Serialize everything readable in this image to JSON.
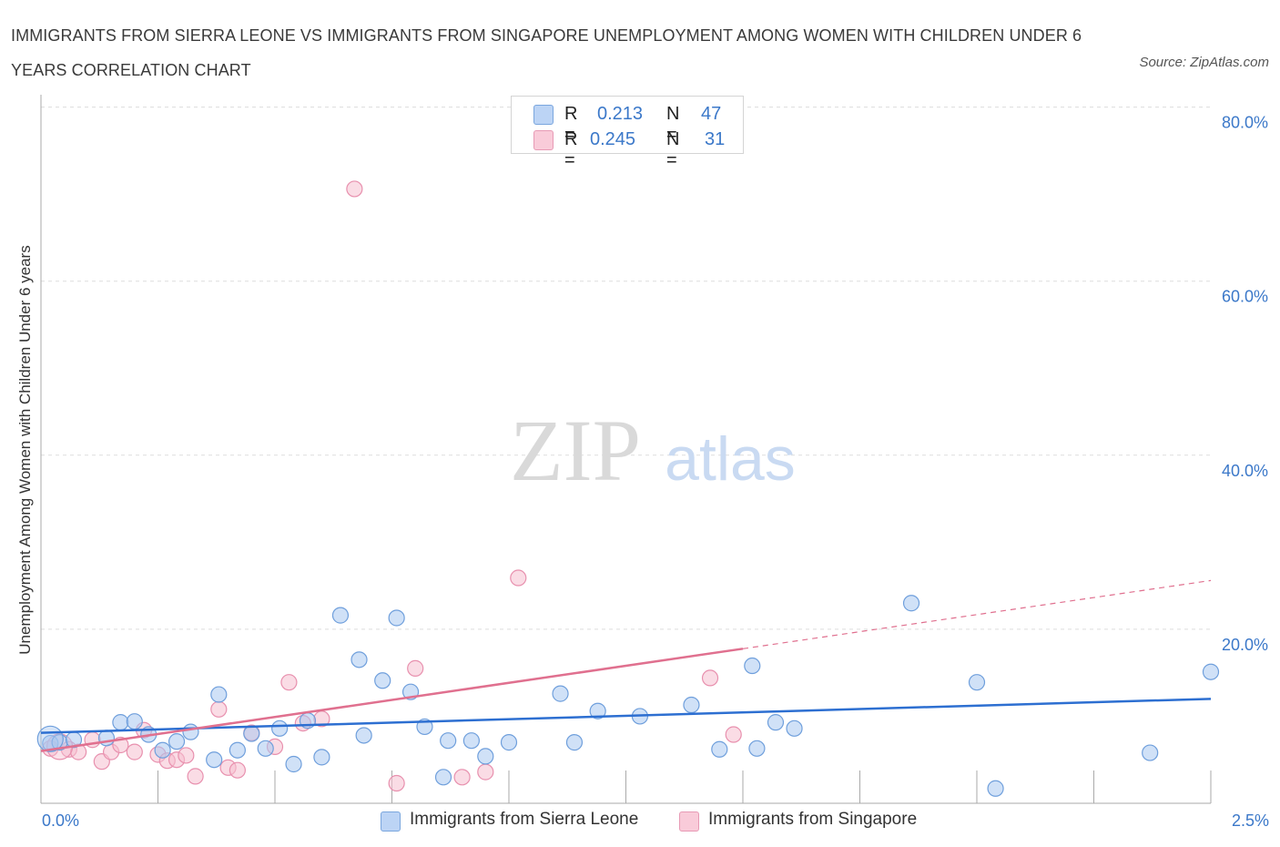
{
  "title": "IMMIGRANTS FROM SIERRA LEONE VS IMMIGRANTS FROM SINGAPORE UNEMPLOYMENT AMONG WOMEN WITH CHILDREN UNDER 6 YEARS CORRELATION CHART",
  "source": "Source: ZipAtlas.com",
  "watermark": {
    "zip": "ZIP",
    "atlas": "atlas"
  },
  "legend": {
    "r_label": "R =",
    "n_label": "N =",
    "series": [
      {
        "r": "0.213",
        "n": "47"
      },
      {
        "r": "0.245",
        "n": "31"
      }
    ]
  },
  "colors": {
    "blue_fill": "#a9c8f0",
    "blue_stroke": "#6f9fdc",
    "blue_line": "#2d6fd1",
    "pink_fill": "#f6bfd0",
    "pink_stroke": "#e890ae",
    "pink_line": "#e0708f",
    "grid": "#dddddd",
    "axis_text": "#3b78c9"
  },
  "chart_data": {
    "type": "scatter",
    "title": "IMMIGRANTS FROM SIERRA LEONE VS IMMIGRANTS FROM SINGAPORE UNEMPLOYMENT AMONG WOMEN WITH CHILDREN UNDER 6 YEARS CORRELATION CHART",
    "xlabel": "",
    "ylabel": "Unemployment Among Women with Children Under 6 years",
    "xlim": [
      0,
      2.5
    ],
    "ylim": [
      0,
      80
    ],
    "x_tick_labels": [
      "0.0%",
      "2.5%"
    ],
    "y_tick_labels": [
      "20.0%",
      "40.0%",
      "60.0%",
      "80.0%"
    ],
    "y_ticks": [
      20,
      40,
      60,
      80
    ],
    "grid": true,
    "legend_position": "bottom",
    "series": [
      {
        "name": "Immigrants from Sierra Leone",
        "color": "blue",
        "trend": {
          "x": [
            0,
            2.5
          ],
          "y": [
            8.1,
            12.0
          ],
          "dashed_from": null
        },
        "points": [
          [
            0.02,
            6.9
          ],
          [
            0.04,
            7.0
          ],
          [
            0.07,
            7.3
          ],
          [
            0.14,
            7.5
          ],
          [
            0.17,
            9.3
          ],
          [
            0.2,
            9.4
          ],
          [
            0.23,
            7.9
          ],
          [
            0.26,
            6.1
          ],
          [
            0.29,
            7.1
          ],
          [
            0.32,
            8.2
          ],
          [
            0.37,
            5.0
          ],
          [
            0.38,
            12.5
          ],
          [
            0.42,
            6.1
          ],
          [
            0.45,
            8.0
          ],
          [
            0.48,
            6.3
          ],
          [
            0.51,
            8.6
          ],
          [
            0.54,
            4.5
          ],
          [
            0.57,
            9.5
          ],
          [
            0.6,
            5.3
          ],
          [
            0.64,
            21.6
          ],
          [
            0.68,
            16.5
          ],
          [
            0.69,
            7.8
          ],
          [
            0.73,
            14.1
          ],
          [
            0.76,
            21.3
          ],
          [
            0.79,
            12.8
          ],
          [
            0.82,
            8.8
          ],
          [
            0.86,
            3.0
          ],
          [
            0.87,
            7.2
          ],
          [
            0.92,
            7.2
          ],
          [
            0.95,
            5.4
          ],
          [
            1.0,
            7.0
          ],
          [
            1.11,
            12.6
          ],
          [
            1.14,
            7.0
          ],
          [
            1.19,
            10.6
          ],
          [
            1.28,
            10.0
          ],
          [
            1.39,
            11.3
          ],
          [
            1.45,
            6.2
          ],
          [
            1.52,
            15.8
          ],
          [
            1.53,
            6.3
          ],
          [
            1.57,
            9.3
          ],
          [
            1.61,
            8.6
          ],
          [
            1.86,
            23.0
          ],
          [
            2.0,
            13.9
          ],
          [
            2.04,
            1.7
          ],
          [
            2.37,
            5.8
          ],
          [
            2.5,
            15.1
          ],
          [
            0.02,
            7.4
          ]
        ]
      },
      {
        "name": "Immigrants from Singapore",
        "color": "pink",
        "trend": {
          "x": [
            0,
            2.5
          ],
          "y": [
            6.0,
            25.6
          ],
          "dashed_from": 1.5
        },
        "points": [
          [
            0.02,
            6.3
          ],
          [
            0.06,
            6.2
          ],
          [
            0.08,
            5.9
          ],
          [
            0.11,
            7.3
          ],
          [
            0.13,
            4.8
          ],
          [
            0.15,
            5.9
          ],
          [
            0.17,
            6.7
          ],
          [
            0.2,
            5.9
          ],
          [
            0.22,
            8.4
          ],
          [
            0.25,
            5.6
          ],
          [
            0.27,
            4.9
          ],
          [
            0.29,
            5.0
          ],
          [
            0.31,
            5.5
          ],
          [
            0.33,
            3.1
          ],
          [
            0.38,
            10.8
          ],
          [
            0.4,
            4.1
          ],
          [
            0.42,
            3.8
          ],
          [
            0.45,
            8.1
          ],
          [
            0.5,
            6.5
          ],
          [
            0.53,
            13.9
          ],
          [
            0.56,
            9.2
          ],
          [
            0.6,
            9.7
          ],
          [
            0.67,
            70.6
          ],
          [
            0.76,
            2.3
          ],
          [
            0.8,
            15.5
          ],
          [
            0.9,
            3.0
          ],
          [
            0.95,
            3.6
          ],
          [
            1.02,
            25.9
          ],
          [
            1.43,
            14.4
          ],
          [
            1.48,
            7.9
          ],
          [
            0.04,
            6.5
          ]
        ]
      }
    ]
  },
  "bottom_legend": [
    {
      "label": "Immigrants from Sierra Leone"
    },
    {
      "label": "Immigrants from Singapore"
    }
  ]
}
